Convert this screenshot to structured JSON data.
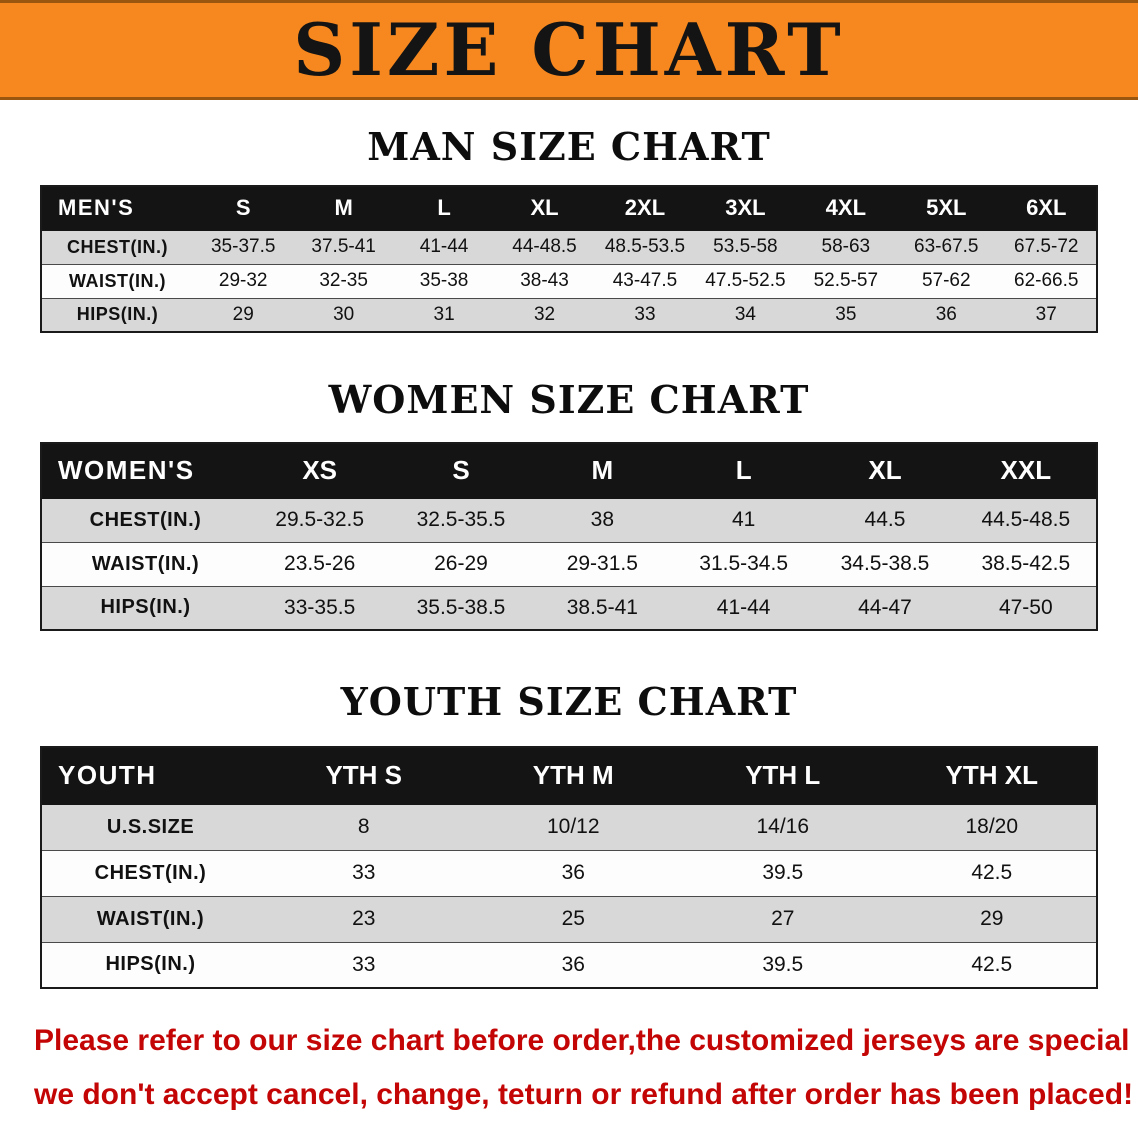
{
  "banner": {
    "title": "SIZE CHART",
    "background_color": "#f6881f",
    "text_color": "#141414"
  },
  "sections": {
    "men": {
      "heading": "MAN SIZE CHART",
      "table": {
        "header": [
          "MEN'S",
          "S",
          "M",
          "L",
          "XL",
          "2XL",
          "3XL",
          "4XL",
          "5XL",
          "6XL"
        ],
        "rows": [
          {
            "label": "CHEST(IN.)",
            "values": [
              "35-37.5",
              "37.5-41",
              "41-44",
              "44-48.5",
              "48.5-53.5",
              "53.5-58",
              "58-63",
              "63-67.5",
              "67.5-72"
            ]
          },
          {
            "label": "WAIST(IN.)",
            "values": [
              "29-32",
              "32-35",
              "35-38",
              "38-43",
              "43-47.5",
              "47.5-52.5",
              "52.5-57",
              "57-62",
              "62-66.5"
            ]
          },
          {
            "label": "HIPS(IN.)",
            "values": [
              "29",
              "30",
              "31",
              "32",
              "33",
              "34",
              "35",
              "36",
              "37"
            ]
          }
        ]
      }
    },
    "women": {
      "heading": "WOMEN SIZE CHART",
      "table": {
        "header": [
          "WOMEN'S",
          "XS",
          "S",
          "M",
          "L",
          "XL",
          "XXL"
        ],
        "rows": [
          {
            "label": "CHEST(IN.)",
            "values": [
              "29.5-32.5",
              "32.5-35.5",
              "38",
              "41",
              "44.5",
              "44.5-48.5"
            ]
          },
          {
            "label": "WAIST(IN.)",
            "values": [
              "23.5-26",
              "26-29",
              "29-31.5",
              "31.5-34.5",
              "34.5-38.5",
              "38.5-42.5"
            ]
          },
          {
            "label": "HIPS(IN.)",
            "values": [
              "33-35.5",
              "35.5-38.5",
              "38.5-41",
              "41-44",
              "44-47",
              "47-50"
            ]
          }
        ]
      }
    },
    "youth": {
      "heading": "YOUTH SIZE CHART",
      "table": {
        "header": [
          "YOUTH",
          "YTH S",
          "YTH M",
          "YTH L",
          "YTH XL"
        ],
        "rows": [
          {
            "label": "U.S.SIZE",
            "values": [
              "8",
              "10/12",
              "14/16",
              "18/20"
            ]
          },
          {
            "label": "CHEST(IN.)",
            "values": [
              "33",
              "36",
              "39.5",
              "42.5"
            ]
          },
          {
            "label": "WAIST(IN.)",
            "values": [
              "23",
              "25",
              "27",
              "29"
            ]
          },
          {
            "label": "HIPS(IN.)",
            "values": [
              "33",
              "36",
              "39.5",
              "42.5"
            ]
          }
        ]
      }
    }
  },
  "footer": {
    "text_color": "#c40505",
    "lines": [
      "Please refer to our size chart before order,the customized jerseys are special products,",
      "we don't accept cancel, change, teturn or refund after order has been placed!"
    ]
  }
}
